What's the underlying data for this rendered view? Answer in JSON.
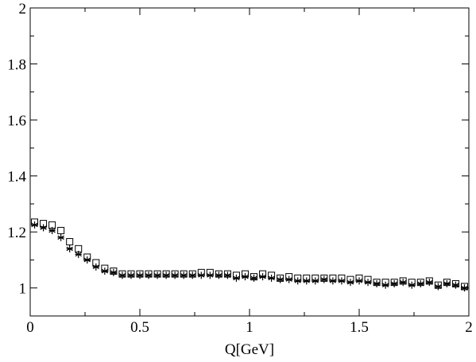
{
  "chart_data": {
    "type": "scatter",
    "title": "",
    "xlabel": "Q[GeV]",
    "ylabel": "",
    "xlim": [
      0,
      2
    ],
    "ylim": [
      0.9,
      2
    ],
    "x_ticks": [
      0,
      0.5,
      1,
      1.5,
      2
    ],
    "x_tick_labels": [
      "0",
      "0.5",
      "1",
      "1.5",
      "2"
    ],
    "y_ticks": [
      1,
      1.2,
      1.4,
      1.6,
      1.8,
      2
    ],
    "y_tick_labels": [
      "1",
      "1.2",
      "1.4",
      "1.6",
      "1.8",
      "2"
    ],
    "grid": false,
    "legend": "none",
    "series": [
      {
        "marker": "square-open",
        "color": "#000000",
        "x": [
          0.02,
          0.06,
          0.1,
          0.14,
          0.18,
          0.22,
          0.26,
          0.3,
          0.34,
          0.38,
          0.42,
          0.46,
          0.5,
          0.54,
          0.58,
          0.62,
          0.66,
          0.7,
          0.74,
          0.78,
          0.82,
          0.86,
          0.9,
          0.94,
          0.98,
          1.02,
          1.06,
          1.1,
          1.14,
          1.18,
          1.22,
          1.26,
          1.3,
          1.34,
          1.38,
          1.42,
          1.46,
          1.5,
          1.54,
          1.58,
          1.62,
          1.66,
          1.7,
          1.74,
          1.78,
          1.82,
          1.86,
          1.9,
          1.94,
          1.98
        ],
        "y": [
          1.235,
          1.23,
          1.225,
          1.205,
          1.165,
          1.14,
          1.11,
          1.09,
          1.07,
          1.06,
          1.05,
          1.05,
          1.05,
          1.05,
          1.05,
          1.05,
          1.05,
          1.05,
          1.05,
          1.055,
          1.055,
          1.05,
          1.05,
          1.045,
          1.05,
          1.04,
          1.05,
          1.045,
          1.035,
          1.04,
          1.035,
          1.035,
          1.035,
          1.035,
          1.035,
          1.035,
          1.03,
          1.035,
          1.03,
          1.02,
          1.02,
          1.02,
          1.025,
          1.02,
          1.02,
          1.025,
          1.01,
          1.02,
          1.015,
          1.005
        ]
      },
      {
        "marker": "asterisk",
        "color": "#000000",
        "x": [
          0.02,
          0.06,
          0.1,
          0.14,
          0.18,
          0.22,
          0.26,
          0.3,
          0.34,
          0.38,
          0.42,
          0.46,
          0.5,
          0.54,
          0.58,
          0.62,
          0.66,
          0.7,
          0.74,
          0.78,
          0.82,
          0.86,
          0.9,
          0.94,
          0.98,
          1.02,
          1.06,
          1.1,
          1.14,
          1.18,
          1.22,
          1.26,
          1.3,
          1.34,
          1.38,
          1.42,
          1.46,
          1.5,
          1.54,
          1.58,
          1.62,
          1.66,
          1.7,
          1.74,
          1.78,
          1.82,
          1.86,
          1.9,
          1.94,
          1.98
        ],
        "y": [
          1.225,
          1.215,
          1.205,
          1.18,
          1.14,
          1.12,
          1.1,
          1.075,
          1.06,
          1.055,
          1.045,
          1.045,
          1.045,
          1.045,
          1.045,
          1.045,
          1.045,
          1.045,
          1.045,
          1.045,
          1.045,
          1.045,
          1.045,
          1.035,
          1.04,
          1.035,
          1.04,
          1.035,
          1.03,
          1.03,
          1.025,
          1.025,
          1.025,
          1.03,
          1.025,
          1.025,
          1.02,
          1.025,
          1.02,
          1.015,
          1.01,
          1.015,
          1.02,
          1.01,
          1.015,
          1.02,
          1.005,
          1.015,
          1.01,
          1.0
        ]
      }
    ]
  }
}
